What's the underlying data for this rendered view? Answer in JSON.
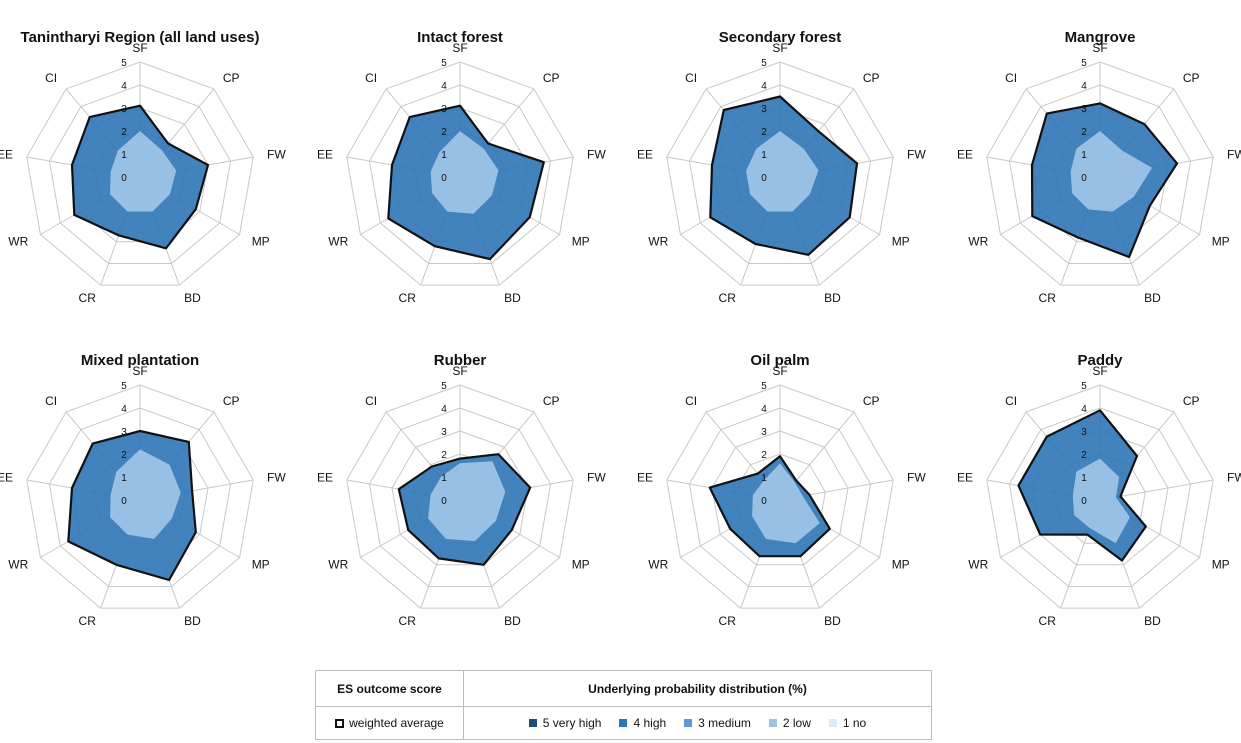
{
  "axes": [
    "SF",
    "CP",
    "FW",
    "MP",
    "BD",
    "CR",
    "WR",
    "EE",
    "CI"
  ],
  "scale": {
    "min": 0,
    "max": 5,
    "tick_labels": [
      "0",
      "1",
      "2",
      "3",
      "4",
      "5"
    ]
  },
  "colors": {
    "5 very high": "#1f4e79",
    "4 high": "#2e75b6",
    "3 medium": "#5b9bd5",
    "2 low": "#9dc3e6",
    "1 no": "#deebf7",
    "weighted_average_outline": "#111111",
    "grid": "#c8c8c8"
  },
  "chart_data": [
    {
      "type": "radar",
      "title": "Tanintharyi Region (all land uses)",
      "series": [
        {
          "name": "weighted average",
          "values": [
            3.1,
            1.9,
            3.0,
            2.8,
            3.3,
            2.7,
            3.3,
            3.0,
            3.4
          ]
        },
        {
          "name": "2 low",
          "values": [
            2.0,
            1.5,
            1.6,
            1.5,
            1.6,
            1.6,
            1.5,
            1.3,
            1.5
          ]
        }
      ]
    },
    {
      "type": "radar",
      "title": "Intact forest",
      "series": [
        {
          "name": "weighted average",
          "values": [
            3.1,
            1.9,
            3.7,
            3.5,
            3.8,
            3.2,
            3.6,
            3.0,
            3.4
          ]
        },
        {
          "name": "2 low",
          "values": [
            2.0,
            1.6,
            1.7,
            1.6,
            1.7,
            1.6,
            1.4,
            1.3,
            1.4
          ]
        }
      ]
    },
    {
      "type": "radar",
      "title": "Secondary forest",
      "series": [
        {
          "name": "weighted average",
          "values": [
            3.5,
            2.6,
            3.4,
            3.5,
            3.6,
            3.1,
            3.5,
            3.0,
            3.8
          ]
        },
        {
          "name": "2 low",
          "values": [
            2.0,
            1.6,
            1.7,
            1.5,
            1.6,
            1.6,
            1.5,
            1.5,
            1.6
          ]
        }
      ]
    },
    {
      "type": "radar",
      "title": "Mangrove",
      "series": [
        {
          "name": "weighted average",
          "values": [
            3.2,
            3.0,
            3.4,
            2.5,
            3.7,
            2.8,
            3.4,
            3.0,
            3.6
          ]
        },
        {
          "name": "2 low",
          "values": [
            2.0,
            1.5,
            2.3,
            1.7,
            1.6,
            1.5,
            1.4,
            1.3,
            1.6
          ]
        }
      ]
    },
    {
      "type": "radar",
      "title": "Mixed plantation",
      "series": [
        {
          "name": "weighted average",
          "values": [
            3.0,
            3.3,
            2.3,
            2.8,
            3.7,
            3.0,
            3.6,
            3.0,
            3.2
          ]
        },
        {
          "name": "2 low",
          "values": [
            2.2,
            2.0,
            1.8,
            1.6,
            1.8,
            1.6,
            1.5,
            1.3,
            1.6
          ]
        }
      ]
    },
    {
      "type": "radar",
      "title": "Rubber",
      "series": [
        {
          "name": "weighted average",
          "values": [
            1.8,
            2.6,
            3.1,
            2.6,
            3.0,
            2.7,
            2.6,
            2.7,
            1.9
          ]
        },
        {
          "name": "2 low",
          "values": [
            1.6,
            2.2,
            2.0,
            1.8,
            1.9,
            1.8,
            1.6,
            1.3,
            1.3
          ]
        }
      ]
    },
    {
      "type": "radar",
      "title": "Oil palm",
      "series": [
        {
          "name": "weighted average",
          "values": [
            1.9,
            1.1,
            1.3,
            2.5,
            2.6,
            2.6,
            2.5,
            3.1,
            1.5
          ]
        },
        {
          "name": "2 low",
          "values": [
            1.6,
            1.0,
            1.0,
            2.0,
            2.0,
            1.8,
            1.4,
            1.2,
            1.1
          ]
        }
      ]
    },
    {
      "type": "radar",
      "title": "Paddy",
      "series": [
        {
          "name": "weighted average",
          "values": [
            3.9,
            2.5,
            0.9,
            2.3,
            2.8,
            1.6,
            3.0,
            3.6,
            3.6
          ]
        },
        {
          "name": "2 low",
          "values": [
            1.8,
            1.3,
            0.7,
            1.5,
            2.0,
            1.3,
            1.3,
            1.2,
            1.6
          ]
        }
      ]
    }
  ],
  "legend": {
    "header_left": "ES outcome score",
    "header_right": "Underlying probability distribution (%)",
    "weighted_label": "weighted average",
    "items": [
      {
        "label": "5 very high",
        "color": "#1f4e79"
      },
      {
        "label": "4 high",
        "color": "#2e75b6"
      },
      {
        "label": "3 medium",
        "color": "#5b9bd5"
      },
      {
        "label": "2 low",
        "color": "#9dc3e6"
      },
      {
        "label": "1 no",
        "color": "#deebf7"
      }
    ]
  }
}
